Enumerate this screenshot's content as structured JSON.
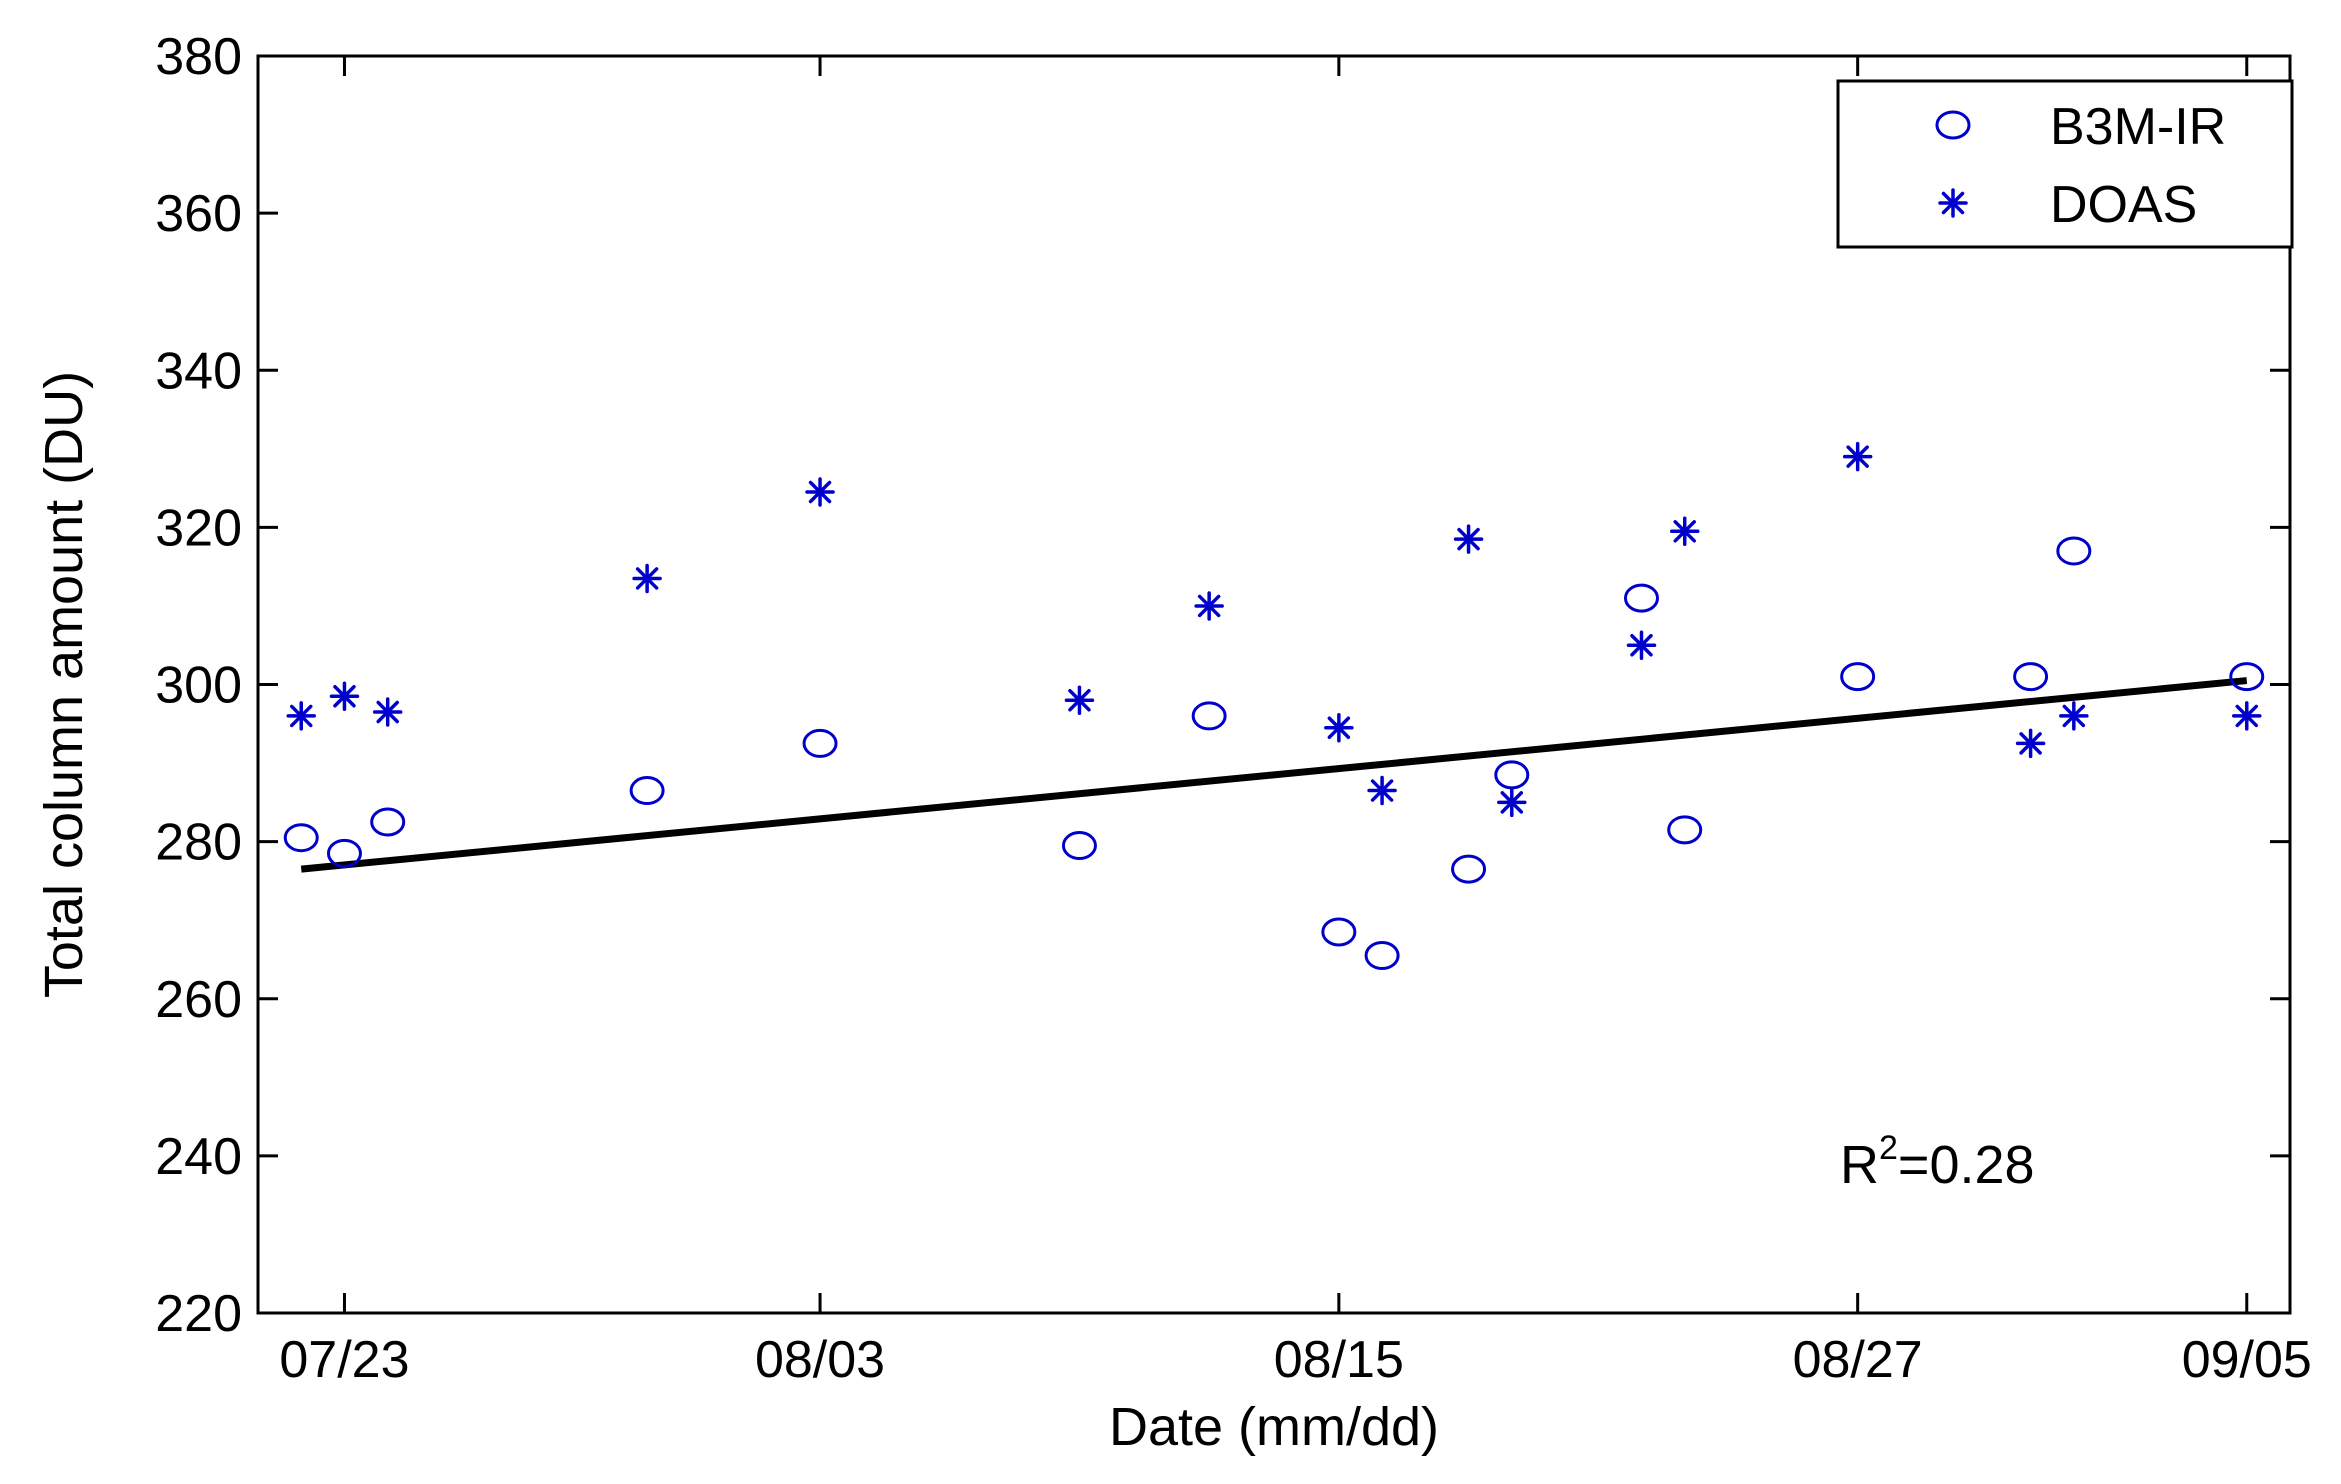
{
  "chart_data": {
    "type": "scatter",
    "title": "",
    "xlabel": "Date (mm/dd)",
    "ylabel": "Total column amount (DU)",
    "x_unit": "date (mm/dd), year not shown",
    "xlim": [
      "07/21",
      "09/06"
    ],
    "ylim": [
      220,
      380
    ],
    "xticks": [
      {
        "date": "07/23",
        "label": "07/23"
      },
      {
        "date": "08/03",
        "label": "08/03"
      },
      {
        "date": "08/15",
        "label": "08/15"
      },
      {
        "date": "08/27",
        "label": "08/27"
      },
      {
        "date": "09/05",
        "label": "09/05"
      }
    ],
    "yticks": [
      220,
      240,
      260,
      280,
      300,
      320,
      340,
      360,
      380
    ],
    "grid": false,
    "legend_position": "top-right",
    "series": [
      {
        "name": "B3M-IR",
        "marker": "circle",
        "color": "#0000CC",
        "points": [
          {
            "x": "07/22",
            "y": 280.5
          },
          {
            "x": "07/23",
            "y": 278.5
          },
          {
            "x": "07/24",
            "y": 282.5
          },
          {
            "x": "07/30",
            "y": 286.5
          },
          {
            "x": "08/03",
            "y": 292.5
          },
          {
            "x": "08/09",
            "y": 279.5
          },
          {
            "x": "08/12",
            "y": 296.0
          },
          {
            "x": "08/15",
            "y": 268.5
          },
          {
            "x": "08/16",
            "y": 265.5
          },
          {
            "x": "08/18",
            "y": 276.5
          },
          {
            "x": "08/19",
            "y": 288.5
          },
          {
            "x": "08/22",
            "y": 311.0
          },
          {
            "x": "08/23",
            "y": 281.5
          },
          {
            "x": "08/27",
            "y": 301.0
          },
          {
            "x": "08/31",
            "y": 301.0
          },
          {
            "x": "09/01",
            "y": 317.0
          },
          {
            "x": "09/05",
            "y": 301.0
          }
        ]
      },
      {
        "name": "DOAS",
        "marker": "asterisk",
        "color": "#0000CC",
        "points": [
          {
            "x": "07/22",
            "y": 296.0
          },
          {
            "x": "07/23",
            "y": 298.5
          },
          {
            "x": "07/24",
            "y": 296.5
          },
          {
            "x": "07/30",
            "y": 313.5
          },
          {
            "x": "08/03",
            "y": 324.5
          },
          {
            "x": "08/09",
            "y": 298.0
          },
          {
            "x": "08/12",
            "y": 310.0
          },
          {
            "x": "08/15",
            "y": 294.5
          },
          {
            "x": "08/16",
            "y": 286.5
          },
          {
            "x": "08/18",
            "y": 318.5
          },
          {
            "x": "08/19",
            "y": 285.0
          },
          {
            "x": "08/22",
            "y": 305.0
          },
          {
            "x": "08/23",
            "y": 319.5
          },
          {
            "x": "08/27",
            "y": 329.0
          },
          {
            "x": "08/31",
            "y": 292.5
          },
          {
            "x": "09/01",
            "y": 296.0
          },
          {
            "x": "09/05",
            "y": 296.0
          }
        ]
      }
    ],
    "trendline": {
      "color": "#000000",
      "start": {
        "x": "07/22",
        "y": 276.5
      },
      "end": {
        "x": "09/05",
        "y": 300.5
      }
    },
    "annotations": [
      {
        "text_base": "R",
        "superscript": "2",
        "text_rest": "=0.28"
      }
    ]
  }
}
